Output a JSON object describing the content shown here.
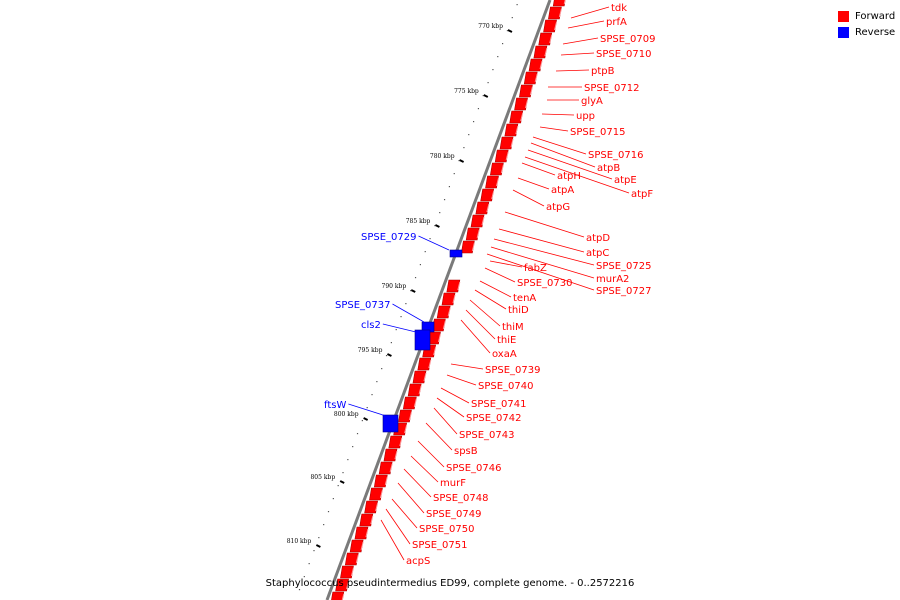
{
  "legend": {
    "forward": {
      "label": "Forward",
      "color": "#ff0000"
    },
    "reverse": {
      "label": "Reverse",
      "color": "#0000ff"
    }
  },
  "caption": "Staphylococcus pseudintermedius ED99, complete genome. - 0..2572216",
  "ticks": [
    "770 kbp",
    "775 kbp",
    "780 kbp",
    "785 kbp",
    "790 kbp",
    "795 kbp",
    "800 kbp",
    "805 kbp",
    "810 kbp"
  ],
  "forward_genes": [
    "tdk",
    "prfA",
    "SPSE_0709",
    "SPSE_0710",
    "ptpB",
    "SPSE_0712",
    "glyA",
    "upp",
    "SPSE_0715",
    "SPSE_0716",
    "atpB",
    "atpE",
    "atpF",
    "atpH",
    "atpA",
    "atpG",
    "atpD",
    "atpC",
    "SPSE_0725",
    "murA2",
    "SPSE_0727",
    "fabZ",
    "SPSE_0730",
    "tenA",
    "thiD",
    "thiM",
    "thiE",
    "oxaA",
    "SPSE_0739",
    "SPSE_0740",
    "SPSE_0741",
    "SPSE_0742",
    "SPSE_0743",
    "spsB",
    "SPSE_0746",
    "murF",
    "SPSE_0748",
    "SPSE_0749",
    "SPSE_0750",
    "SPSE_0751",
    "acpS"
  ],
  "reverse_genes": [
    "SPSE_0729",
    "SPSE_0737",
    "cls2",
    "ftsW"
  ]
}
